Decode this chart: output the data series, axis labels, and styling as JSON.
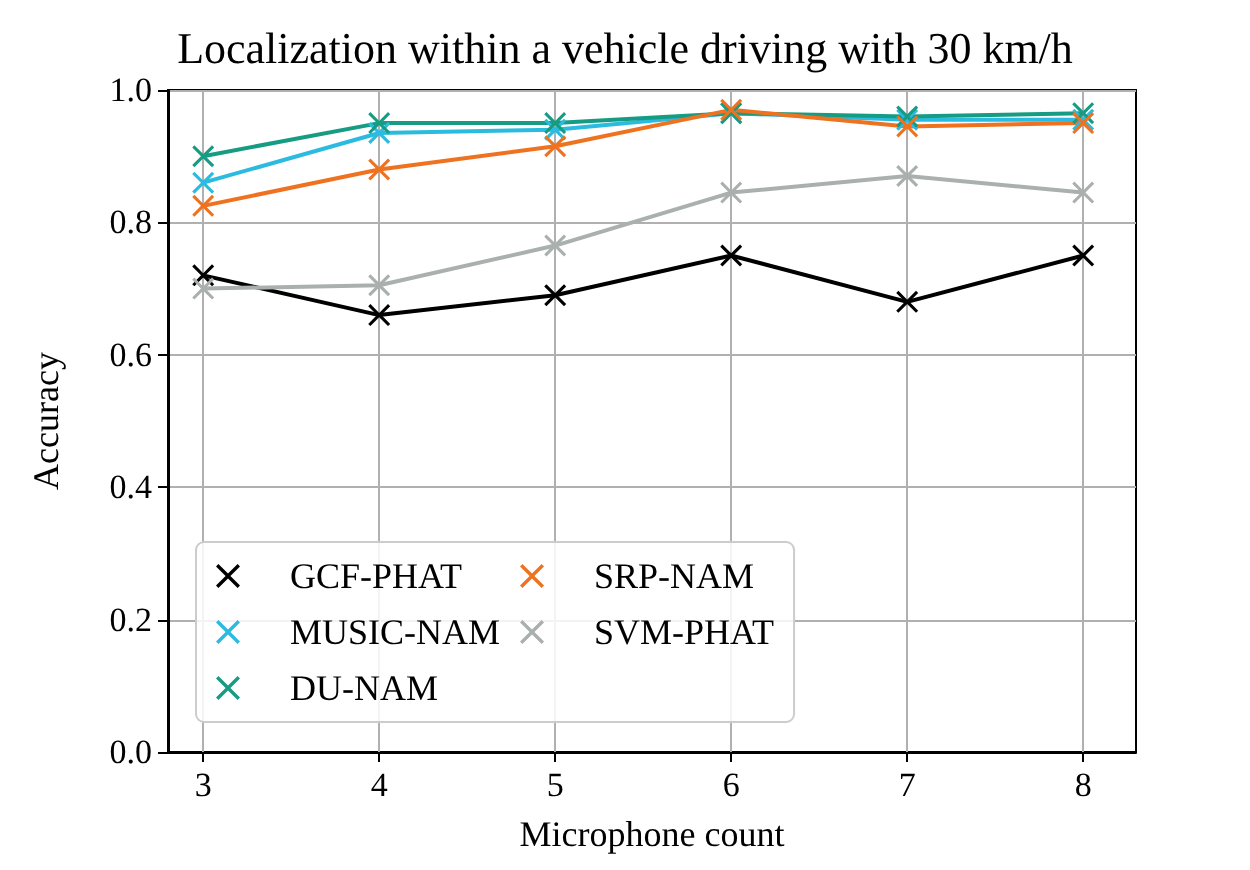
{
  "chart_data": {
    "type": "line",
    "title": "Localization within a vehicle driving with 30 km/h",
    "xlabel": "Microphone count",
    "ylabel": "Accuracy",
    "x": [
      3,
      4,
      5,
      6,
      7,
      8
    ],
    "series": [
      {
        "name": "GCF-PHAT",
        "color": "#000000",
        "values": [
          0.72,
          0.66,
          0.69,
          0.75,
          0.68,
          0.75
        ]
      },
      {
        "name": "MUSIC-NAM",
        "color": "#2bbbe0",
        "values": [
          0.86,
          0.935,
          0.94,
          0.965,
          0.955,
          0.955
        ]
      },
      {
        "name": "DU-NAM",
        "color": "#169c82",
        "values": [
          0.9,
          0.95,
          0.95,
          0.965,
          0.96,
          0.965
        ]
      },
      {
        "name": "SRP-NAM",
        "color": "#ee7220",
        "values": [
          0.825,
          0.88,
          0.915,
          0.97,
          0.945,
          0.95
        ]
      },
      {
        "name": "SVM-PHAT",
        "color": "#a9b0ad",
        "values": [
          0.7,
          0.705,
          0.765,
          0.845,
          0.87,
          0.845
        ]
      }
    ],
    "xlim": [
      2.8,
      8.3
    ],
    "xticks": [
      3,
      4,
      5,
      6,
      7,
      8
    ],
    "ylim": [
      0,
      1
    ],
    "yticks": [
      {
        "value": 0,
        "label": "0.0"
      },
      0.2,
      0.4,
      0.6,
      0.8,
      {
        "value": 1,
        "label": "1.0"
      }
    ],
    "grid": true,
    "legend": "bottom left",
    "marker": "cross",
    "line_style": "solid"
  }
}
